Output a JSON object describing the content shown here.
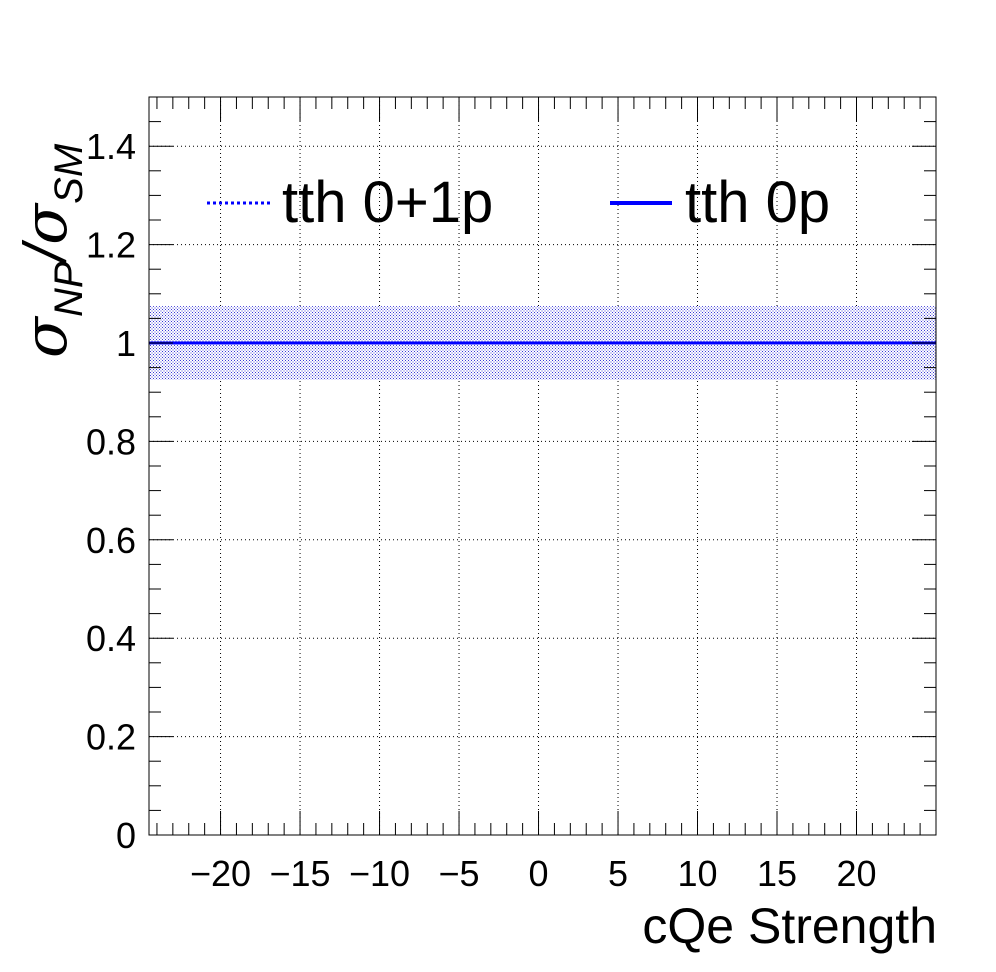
{
  "chart_data": {
    "type": "line",
    "title": "",
    "xlabel": "cQe Strength",
    "ylabel": {
      "main1": "σ",
      "sub1": "NP",
      "slash": "/",
      "main2": "σ",
      "sub2": "SM"
    },
    "xlim": [
      -24.5,
      25
    ],
    "ylim": [
      0,
      1.5
    ],
    "x_ticks": [
      -20,
      -15,
      -10,
      -5,
      0,
      5,
      10,
      15,
      20
    ],
    "x_tick_labels": [
      "−20",
      "−15",
      "−10",
      "−5",
      "0",
      "5",
      "10",
      "15",
      "20"
    ],
    "y_ticks": [
      0,
      0.2,
      0.4,
      0.6,
      0.8,
      1,
      1.2,
      1.4
    ],
    "y_tick_labels": [
      "0",
      "0.2",
      "0.4",
      "0.6",
      "0.8",
      "1",
      "1.2",
      "1.4"
    ],
    "grid": true,
    "legend_position": "top",
    "series": [
      {
        "name": "tth 0+1p",
        "style": "dotted",
        "color": "#0000ff",
        "x": [
          -24.5,
          25
        ],
        "y": [
          1,
          1
        ],
        "band_low": [
          0.925,
          0.925
        ],
        "band_high": [
          1.075,
          1.075
        ]
      },
      {
        "name": "tth 0p",
        "style": "solid",
        "color": "#0000ff",
        "x": [
          -24.5,
          25
        ],
        "y": [
          1,
          1
        ]
      }
    ]
  }
}
